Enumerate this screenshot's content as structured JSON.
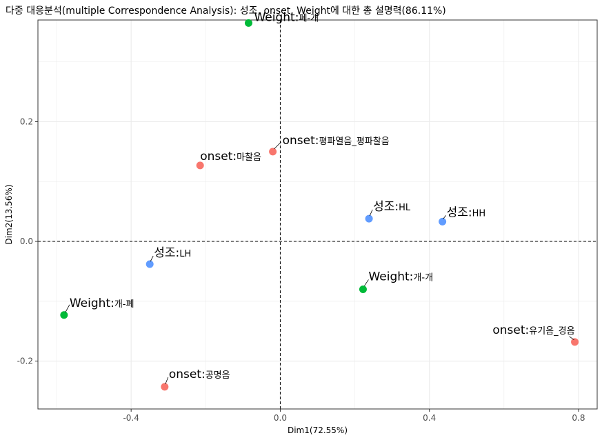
{
  "chart_data": {
    "type": "scatter",
    "title": "다중 대응분석(multiple Correspondence Analysis): 성조, onset, Weight에 대한 총 설명력(86.11%)",
    "xlabel": "Dim1(72.55%)",
    "ylabel": "Dim2(13.56%)",
    "xlim": [
      -0.65,
      0.85
    ],
    "ylim": [
      -0.28,
      0.37
    ],
    "x_ticks": [
      -0.4,
      0.0,
      0.4,
      0.8
    ],
    "x_tick_labels": [
      "-0.4",
      "0.0",
      "0.4",
      "0.8"
    ],
    "y_ticks": [
      -0.2,
      0.0,
      0.2
    ],
    "y_tick_labels": [
      "-0.2",
      "0.0",
      "0.2"
    ],
    "grid": true,
    "reference_lines": {
      "x": 0,
      "y": 0,
      "style": "dashed"
    },
    "colors": {
      "onset": "#F8766D",
      "Weight": "#00BA38",
      "성조": "#619CFF"
    },
    "points": [
      {
        "variable": "Weight",
        "level": "폐-개",
        "x": -0.085,
        "y": 0.365,
        "color": "#00BA38"
      },
      {
        "variable": "onset",
        "level": "평파열음_평파찰음",
        "x": -0.02,
        "y": 0.15,
        "color": "#F8766D"
      },
      {
        "variable": "onset",
        "level": "마찰음",
        "x": -0.215,
        "y": 0.127,
        "color": "#F8766D"
      },
      {
        "variable": "성조",
        "level": "HL",
        "x": 0.238,
        "y": 0.038,
        "color": "#619CFF"
      },
      {
        "variable": "성조",
        "level": "HH",
        "x": 0.435,
        "y": 0.033,
        "color": "#619CFF"
      },
      {
        "variable": "성조",
        "level": "LH",
        "x": -0.35,
        "y": -0.038,
        "color": "#619CFF"
      },
      {
        "variable": "Weight",
        "level": "개-개",
        "x": 0.222,
        "y": -0.08,
        "color": "#00BA38"
      },
      {
        "variable": "Weight",
        "level": "개-폐",
        "x": -0.58,
        "y": -0.123,
        "color": "#00BA38"
      },
      {
        "variable": "onset",
        "level": "유기음_경음",
        "x": 0.79,
        "y": -0.168,
        "color": "#F8766D"
      },
      {
        "variable": "onset",
        "level": "공명음",
        "x": -0.31,
        "y": -0.243,
        "color": "#F8766D"
      }
    ]
  }
}
